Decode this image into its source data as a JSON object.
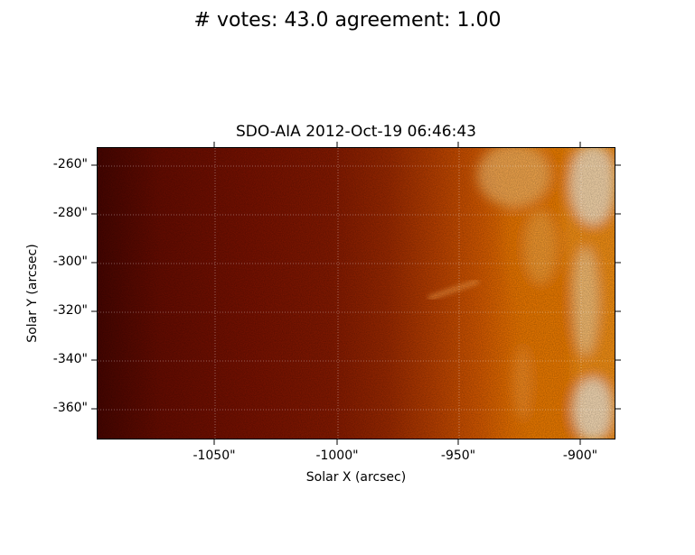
{
  "figure": {
    "suptitle": "# votes: 43.0 agreement: 1.00",
    "plot_title": "SDO-AIA   2012-Oct-19 06:46:43",
    "xlabel": "Solar X (arcsec)",
    "ylabel": "Solar Y (arcsec)",
    "x_ticks": [
      "-1050\"",
      "-1000\"",
      "-950\"",
      "-900\""
    ],
    "y_ticks": [
      "-260\"",
      "-280\"",
      "-300\"",
      "-320\"",
      "-340\"",
      "-360\""
    ],
    "colormap": [
      "#4a0500",
      "#7e1200",
      "#a02a00",
      "#dc5c00",
      "#fa9000",
      "#ffe0b0"
    ]
  }
}
